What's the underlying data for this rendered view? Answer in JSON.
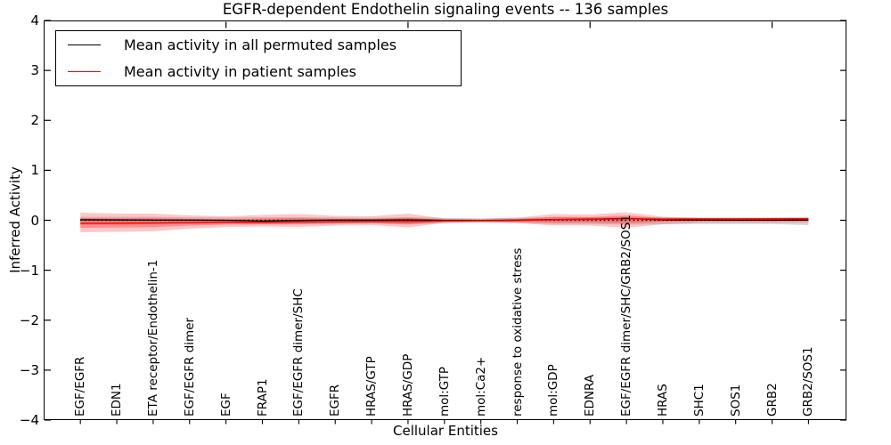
{
  "chart_data": {
    "type": "line",
    "title": "EGFR-dependent Endothelin signaling events -- 136 samples",
    "xlabel": "Cellular Entities",
    "ylabel": "Inferred Activity",
    "ylim": [
      -4,
      4
    ],
    "ytick_labels": [
      "4",
      "3",
      "2",
      "1",
      "0",
      "−1",
      "−2",
      "−3",
      "−4"
    ],
    "ytick_values": [
      4,
      3,
      2,
      1,
      0,
      -1,
      -2,
      -3,
      -4
    ],
    "top_tick_category_indices": [
      4,
      9,
      14,
      19
    ],
    "grid": false,
    "legend_position": "upper left",
    "categories": [
      "EGF/EGFR",
      "EDN1",
      "ETA receptor/Endothelin-1",
      "EGF/EGFR dimer",
      "EGF",
      "FRAP1",
      "EGF/EGFR dimer/SHC",
      "EGFR",
      "HRAS/GTP",
      "HRAS/GDP",
      "mol:GTP",
      "mol:Ca2+",
      "response to oxidative stress",
      "mol:GDP",
      "EDNRA",
      "EGF/EGFR dimer/SHC/GRB2/SOS1",
      "HRAS",
      "SHC1",
      "SOS1",
      "GRB2",
      "GRB2/SOS1"
    ],
    "zero_line": {
      "value": 0,
      "style": "dotted",
      "color": "#000000"
    },
    "series": [
      {
        "name": "Mean activity in all permuted samples",
        "color": "#000000",
        "band_color": "#000000",
        "band_opacity": 0.14,
        "values": [
          0.01,
          0.008,
          0.005,
          0.004,
          0.0,
          -0.015,
          -0.003,
          0.004,
          0.005,
          0.008,
          0.0,
          -0.002,
          0.002,
          0.016,
          0.021,
          0.038,
          0.009,
          0.004,
          0.002,
          0.002,
          0.004
        ],
        "band_upper": [
          0.07,
          0.07,
          0.07,
          0.06,
          0.055,
          0.06,
          0.06,
          0.055,
          0.05,
          0.06,
          0.05,
          0.04,
          0.05,
          0.06,
          0.06,
          0.07,
          0.06,
          0.06,
          0.06,
          0.06,
          0.07
        ],
        "band_lower": [
          -0.09,
          -0.09,
          -0.085,
          -0.08,
          -0.07,
          -0.075,
          -0.08,
          -0.07,
          -0.065,
          -0.08,
          -0.06,
          -0.05,
          -0.06,
          -0.075,
          -0.075,
          -0.09,
          -0.08,
          -0.075,
          -0.075,
          -0.075,
          -0.1
        ]
      },
      {
        "name": "Mean activity in patient samples",
        "color": "#ff0000",
        "band_color": "#ff0000",
        "band_opacity": 0.22,
        "values": [
          -0.063,
          -0.059,
          -0.054,
          -0.045,
          -0.038,
          -0.041,
          -0.032,
          -0.027,
          -0.021,
          -0.025,
          -0.013,
          -0.009,
          -0.005,
          0.013,
          0.018,
          0.03,
          0.023,
          0.027,
          0.027,
          0.029,
          0.03
        ],
        "band_upper": [
          0.152,
          0.134,
          0.134,
          0.098,
          0.08,
          0.107,
          0.125,
          0.089,
          0.08,
          0.134,
          0.036,
          0.027,
          0.054,
          0.125,
          0.116,
          0.161,
          0.071,
          0.045,
          0.045,
          0.045,
          0.054
        ],
        "band_lower": [
          -0.241,
          -0.232,
          -0.223,
          -0.17,
          -0.134,
          -0.125,
          -0.134,
          -0.107,
          -0.098,
          -0.143,
          -0.054,
          -0.036,
          -0.054,
          -0.107,
          -0.107,
          -0.152,
          -0.08,
          -0.054,
          -0.054,
          -0.054,
          -0.054
        ]
      }
    ]
  }
}
